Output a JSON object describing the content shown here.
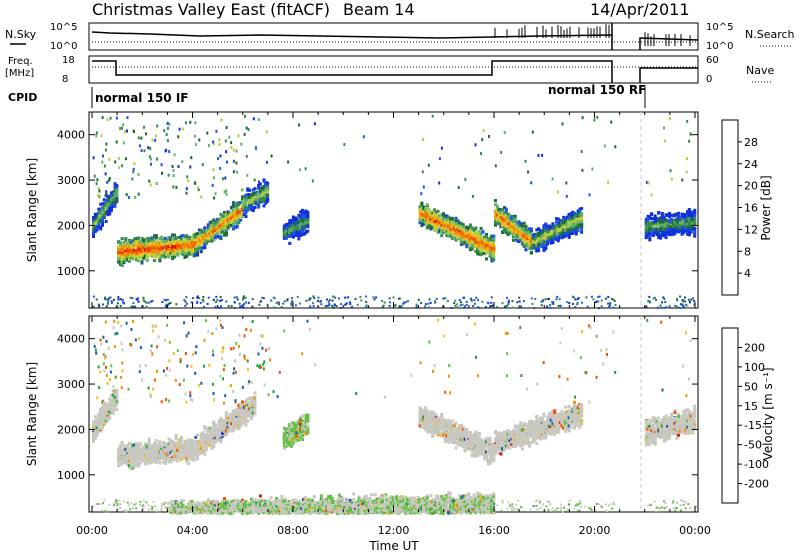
{
  "header": {
    "title": "Christmas Valley East (fitACF)",
    "beam": "Beam 14",
    "date": "14/Apr/2011"
  },
  "params": {
    "nsky_label": "N.Sky",
    "nsky_top": "10^5",
    "nsky_bottom": "10^0",
    "nsearch_label": "N.Search",
    "nsearch_top": "10^5",
    "nsearch_bottom": "10^0",
    "freq_label_1": "Freq.",
    "freq_label_2": "[MHz]",
    "freq_top": "18",
    "freq_bottom": "8",
    "nave_label": "Nave",
    "nave_top": "60",
    "nave_bottom": "0",
    "cpid_label": "CPID",
    "cpid_1": "normal 150 IF",
    "cpid_2": "normal 150 RF"
  },
  "colors": {
    "power": [
      "#1030d8",
      "#2050f0",
      "#1a6a3a",
      "#3a8a50",
      "#60b070",
      "#b0d040",
      "#f0c020",
      "#f09000",
      "#f05000",
      "#e01010"
    ],
    "velocity": [
      "#e01010",
      "#f05000",
      "#f09000",
      "#f0c020",
      "#c8c8c0",
      "#c8c8c0",
      "#60c040",
      "#20a040",
      "#1a5ab0",
      "#1030c0"
    ]
  },
  "chart_data": [
    {
      "type": "heatmap",
      "ylabel": "Slant Range [km]",
      "y_ticks": [
        "1000",
        "2000",
        "3000",
        "4000"
      ],
      "ylim": [
        180,
        4500
      ],
      "xlabel": "Time UT",
      "x_ticks": [
        "00:00",
        "04:00",
        "08:00",
        "12:00",
        "16:00",
        "20:00",
        "00:00"
      ],
      "xlim_hours": [
        0,
        24
      ],
      "colorbar": {
        "label": "Power [dB]",
        "ticks": [
          "4",
          "8",
          "12",
          "16",
          "20",
          "24",
          "28"
        ],
        "range": [
          0,
          30
        ]
      },
      "features": [
        {
          "t_start": 0.0,
          "t_end": 1.0,
          "range_start_km": 2000,
          "range_end_km": 2800,
          "level": 0.55
        },
        {
          "t_start": 1.0,
          "t_end": 4.0,
          "range_start_km": 1450,
          "range_end_km": 1600,
          "level": 0.95
        },
        {
          "t_start": 4.0,
          "t_end": 6.0,
          "range_start_km": 1600,
          "range_end_km": 2400,
          "level": 0.85
        },
        {
          "t_start": 6.0,
          "t_end": 7.0,
          "range_start_km": 2500,
          "range_end_km": 2800,
          "level": 0.6
        },
        {
          "t_start": 7.6,
          "t_end": 8.6,
          "range_start_km": 1850,
          "range_end_km": 2150,
          "level": 0.45
        },
        {
          "t_start": 13.0,
          "t_end": 16.0,
          "range_start_km": 2300,
          "range_end_km": 1500,
          "level": 0.9
        },
        {
          "t_start": 16.0,
          "t_end": 17.5,
          "range_start_km": 2300,
          "range_end_km": 1650,
          "level": 0.85
        },
        {
          "t_start": 17.5,
          "t_end": 19.5,
          "range_start_km": 1650,
          "range_end_km": 2200,
          "level": 0.6
        },
        {
          "t_start": 22.0,
          "t_end": 24.0,
          "range_start_km": 2000,
          "range_end_km": 2100,
          "level": 0.45
        }
      ]
    },
    {
      "type": "heatmap",
      "ylabel": "Slant Range [km]",
      "y_ticks": [
        "1000",
        "2000",
        "3000",
        "4000"
      ],
      "ylim": [
        180,
        4500
      ],
      "xlabel": "Time UT",
      "x_ticks": [
        "00:00",
        "04:00",
        "08:00",
        "12:00",
        "16:00",
        "20:00",
        "00:00"
      ],
      "xlim_hours": [
        0,
        24
      ],
      "colorbar": {
        "label": "Velocity [m s⁻¹]",
        "ticks": [
          "200",
          "100",
          "50",
          "15",
          "-15",
          "-50",
          "-100",
          "-200"
        ],
        "range": [
          -250,
          250
        ]
      },
      "features": [
        {
          "t_start": 0.0,
          "t_end": 1.0,
          "range_start_km": 2000,
          "range_end_km": 2800,
          "velocity": 0
        },
        {
          "t_start": 1.0,
          "t_end": 4.0,
          "range_start_km": 1450,
          "range_end_km": 1600,
          "velocity": -5
        },
        {
          "t_start": 4.0,
          "t_end": 6.5,
          "range_start_km": 1600,
          "range_end_km": 2600,
          "velocity": -10
        },
        {
          "t_start": 7.6,
          "t_end": 8.6,
          "range_start_km": 1800,
          "range_end_km": 2200,
          "velocity": 60
        },
        {
          "t_start": 13.0,
          "t_end": 16.0,
          "range_start_km": 2300,
          "range_end_km": 1500,
          "velocity": 0
        },
        {
          "t_start": 16.0,
          "t_end": 19.5,
          "range_start_km": 1700,
          "range_end_km": 2400,
          "velocity": 0
        },
        {
          "t_start": 22.0,
          "t_end": 24.0,
          "range_start_km": 1950,
          "range_end_km": 2250,
          "velocity": 0
        },
        {
          "t_start": 3.0,
          "t_end": 16.0,
          "range_start_km": 200,
          "range_end_km": 350,
          "velocity": 40
        }
      ]
    }
  ]
}
